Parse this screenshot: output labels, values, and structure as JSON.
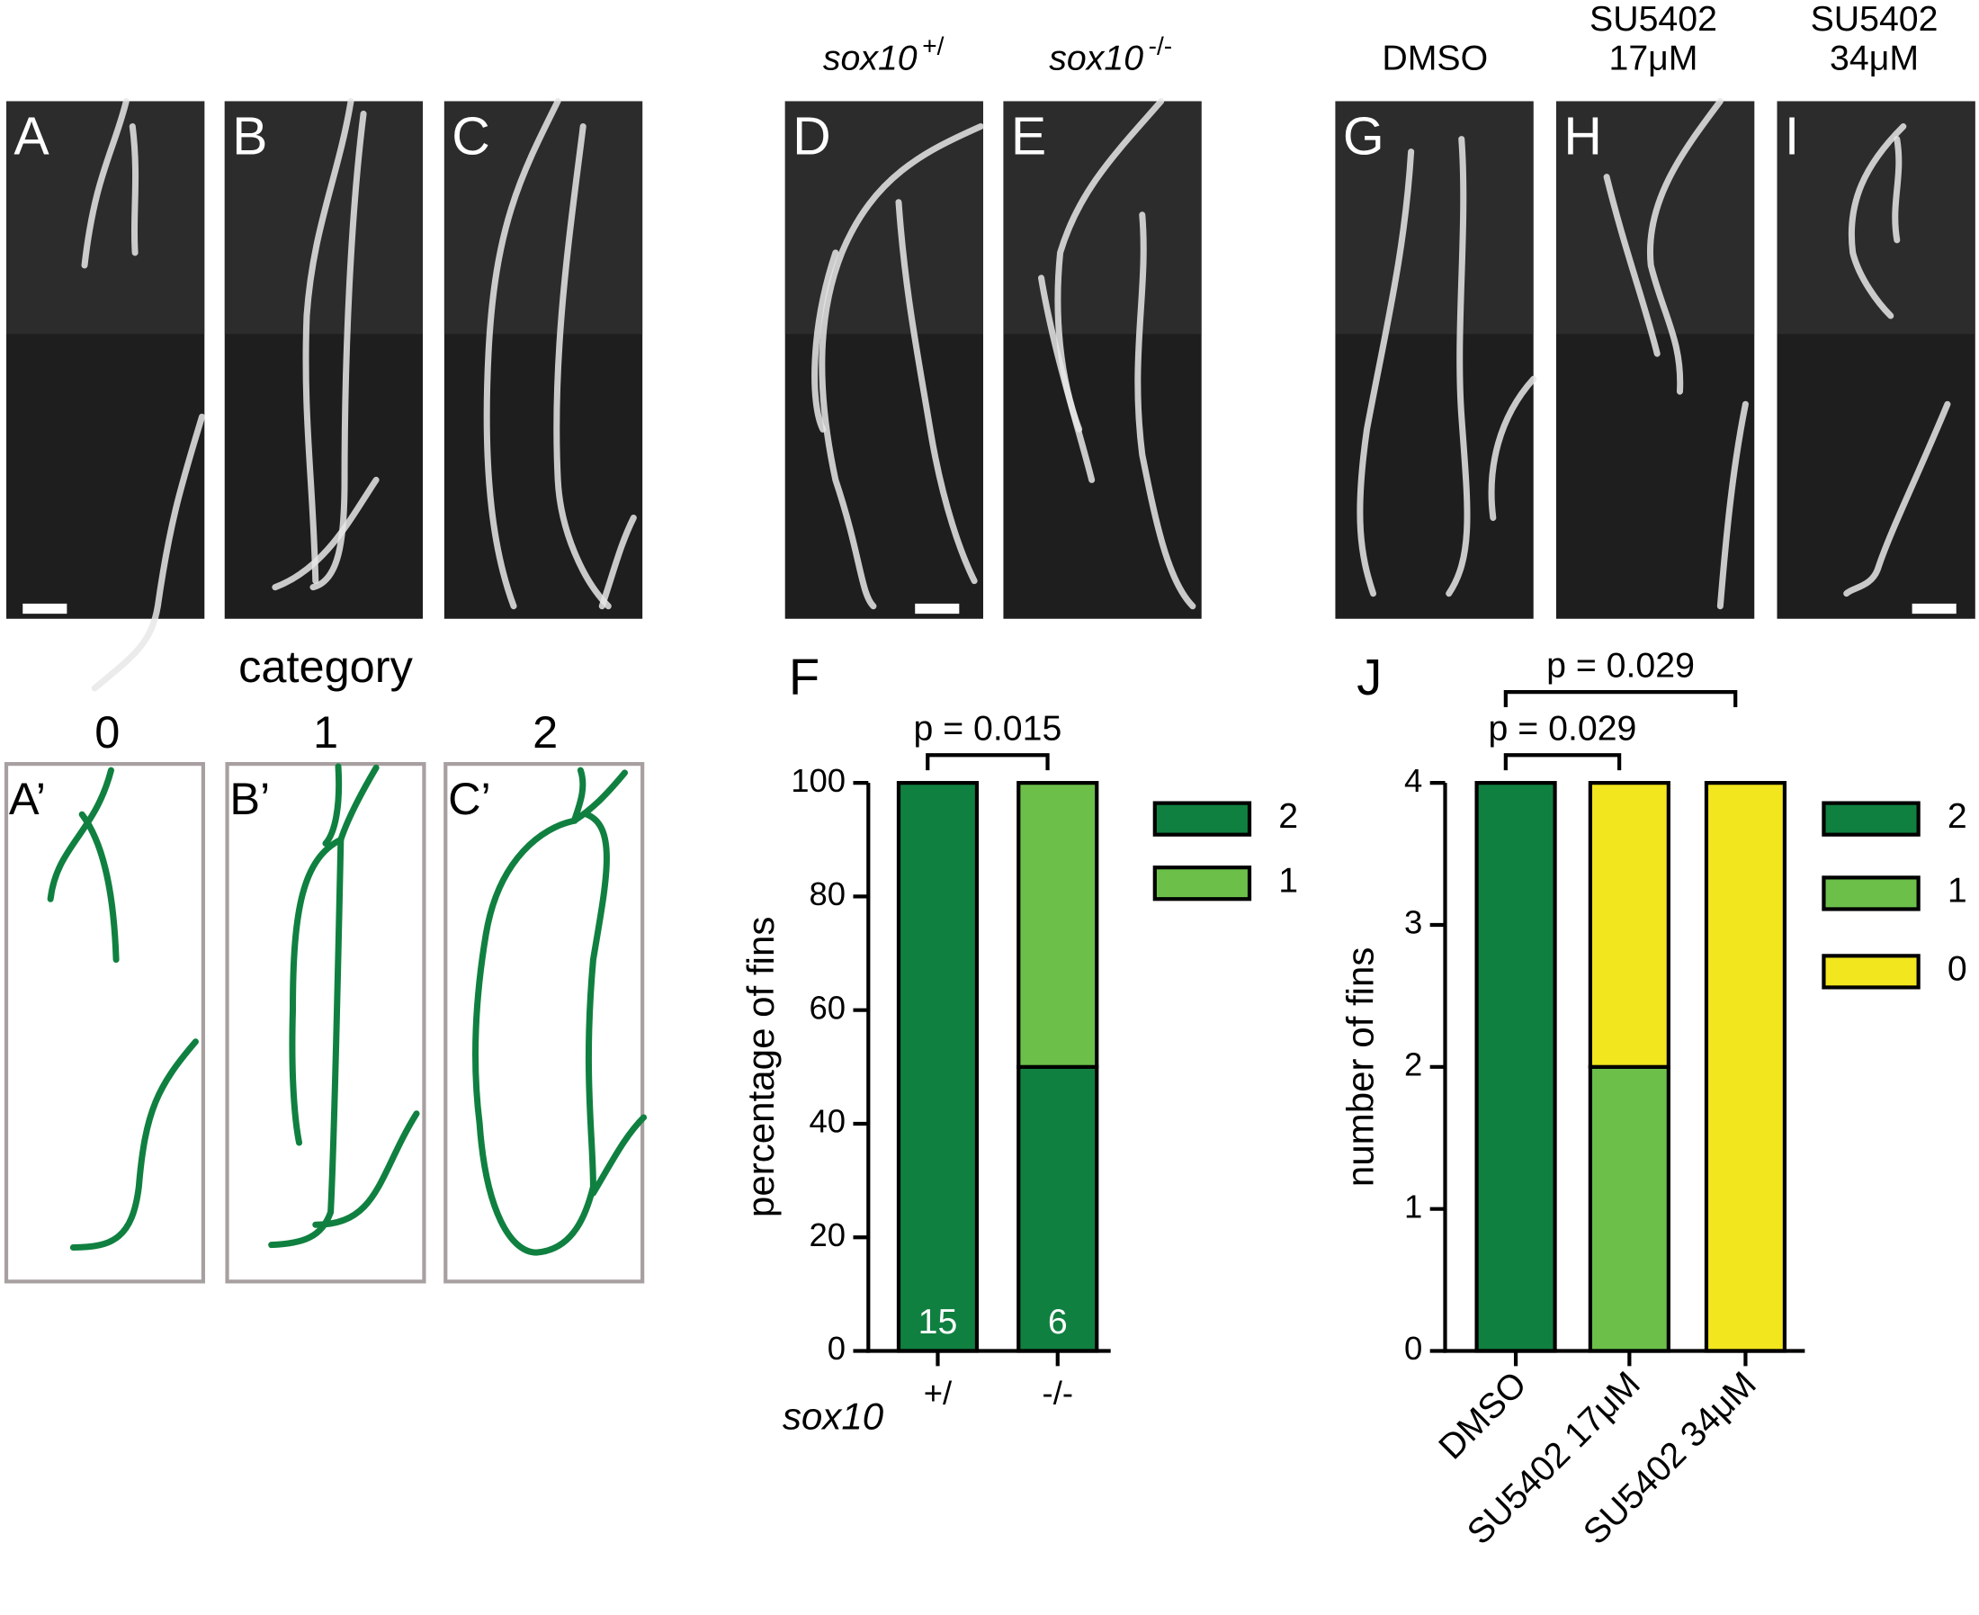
{
  "panels": [
    {
      "label": "A"
    },
    {
      "label": "B"
    },
    {
      "label": "C"
    },
    {
      "label": "D"
    },
    {
      "label": "E"
    },
    {
      "label": "G"
    },
    {
      "label": "H"
    },
    {
      "label": "I"
    }
  ],
  "column_headers": [
    {
      "gene": "sox10",
      "genotype": "+/"
    },
    {
      "gene": "sox10",
      "genotype": "-/-"
    },
    {
      "lines": [
        "DMSO"
      ]
    },
    {
      "lines": [
        "SU5402",
        "17μM"
      ]
    },
    {
      "lines": [
        "SU5402",
        "34μM"
      ]
    }
  ],
  "diagram": {
    "title": "category",
    "categories": [
      "0",
      "1",
      "2"
    ],
    "labels": [
      "A’",
      "B’",
      "C’"
    ]
  },
  "chart_data": [
    {
      "type": "bar",
      "stacked": true,
      "panel_label": "F",
      "categories": [
        "+/",
        "-/-"
      ],
      "x_label": "sox10",
      "y_label": "percentage of fins",
      "ylim": [
        0,
        100
      ],
      "yticks": [
        0,
        20,
        40,
        60,
        80,
        100
      ],
      "series": [
        {
          "name": "2",
          "color": "#108040",
          "values": [
            100,
            50
          ]
        },
        {
          "name": "1",
          "color": "#6cc04a",
          "values": [
            0,
            50
          ]
        }
      ],
      "bar_labels": [
        15,
        6
      ],
      "annotations": [
        "p = 0.015"
      ]
    },
    {
      "type": "bar",
      "stacked": true,
      "panel_label": "J",
      "categories": [
        "DMSO",
        "SU5402 17μM",
        "SU5402 34μM"
      ],
      "y_label": "number of fins",
      "ylim": [
        0,
        4
      ],
      "yticks": [
        0,
        1,
        2,
        3,
        4
      ],
      "series": [
        {
          "name": "2",
          "color": "#108040",
          "values": [
            4,
            0,
            0
          ]
        },
        {
          "name": "1",
          "color": "#6cc04a",
          "values": [
            0,
            2,
            0
          ]
        },
        {
          "name": "0",
          "color": "#f2e61e",
          "values": [
            0,
            2,
            4
          ]
        }
      ],
      "annotations": [
        "p = 0.029",
        "p = 0.029"
      ]
    }
  ]
}
